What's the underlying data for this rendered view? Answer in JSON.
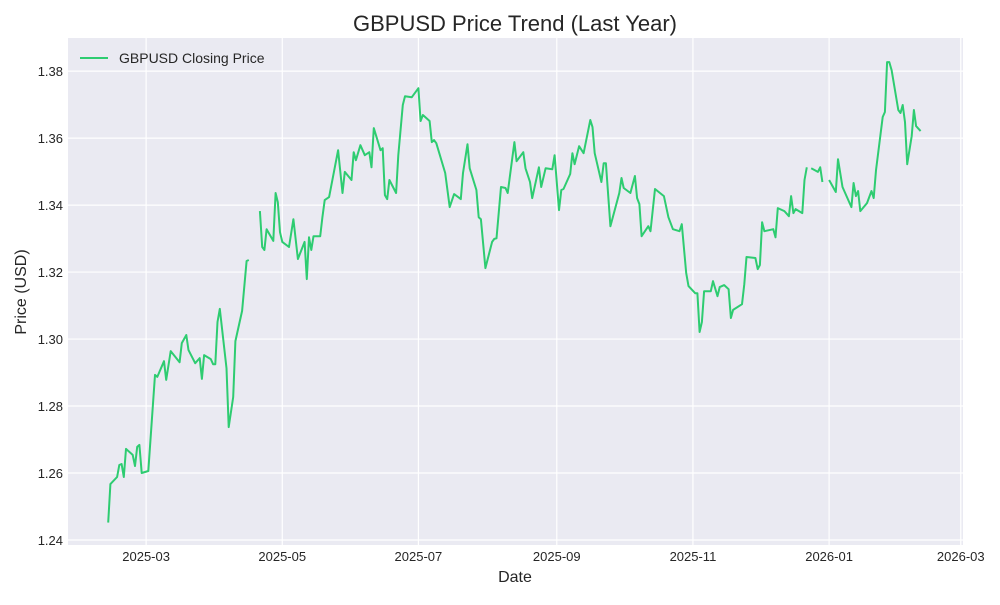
{
  "chart_data": {
    "type": "line",
    "title": "GBPUSD Price Trend (Last Year)",
    "xlabel": "Date",
    "ylabel": "Price (USD)",
    "xlim": [
      "2025-01-25",
      "2026-03-02"
    ],
    "ylim": [
      1.2385,
      1.3899
    ],
    "x_ticks": [
      "2025-03",
      "2025-05",
      "2025-07",
      "2025-09",
      "2025-11",
      "2026-01",
      "2026-03"
    ],
    "y_ticks": [
      "1.24",
      "1.26",
      "1.28",
      "1.30",
      "1.32",
      "1.34",
      "1.36",
      "1.38"
    ],
    "grid": true,
    "background": "#eaeaf2",
    "legend": {
      "placement": "top-left",
      "entries": [
        "GBPUSD Closing Price"
      ]
    },
    "series": [
      {
        "name": "GBPUSD Closing Price",
        "color": "#2ecc71",
        "points": [
          [
            "2025-02-12",
            1.2452
          ],
          [
            "2025-02-13",
            1.2567
          ],
          [
            "2025-02-16",
            1.2588
          ],
          [
            "2025-02-17",
            1.2624
          ],
          [
            "2025-02-18",
            1.2627
          ],
          [
            "2025-02-19",
            1.2588
          ],
          [
            "2025-02-20",
            1.2672
          ],
          [
            "2025-02-23",
            1.2654
          ],
          [
            "2025-02-24",
            1.2621
          ],
          [
            "2025-02-25",
            1.2678
          ],
          [
            "2025-02-26",
            1.2684
          ],
          [
            "2025-02-27",
            1.26
          ],
          [
            "2025-03-02",
            1.2606
          ],
          [
            "2025-03-05",
            1.2893
          ],
          [
            "2025-03-06",
            1.2887
          ],
          [
            "2025-03-09",
            1.2934
          ],
          [
            "2025-03-10",
            1.2878
          ],
          [
            "2025-03-12",
            1.2964
          ],
          [
            "2025-03-16",
            1.2931
          ],
          [
            "2025-03-17",
            1.2988
          ],
          [
            "2025-03-19",
            1.3012
          ],
          [
            "2025-03-20",
            1.2967
          ],
          [
            "2025-03-23",
            1.2928
          ],
          [
            "2025-03-25",
            1.2943
          ],
          [
            "2025-03-26",
            1.2881
          ],
          [
            "2025-03-27",
            1.2952
          ],
          [
            "2025-03-30",
            1.294
          ],
          [
            "2025-03-31",
            1.2925
          ],
          [
            "2025-04-01",
            1.2925
          ],
          [
            "2025-04-02",
            1.3051
          ],
          [
            "2025-04-03",
            1.309
          ],
          [
            "2025-04-06",
            1.2913
          ],
          [
            "2025-04-07",
            1.2737
          ],
          [
            "2025-04-09",
            1.2827
          ],
          [
            "2025-04-10",
            1.2994
          ],
          [
            "2025-04-13",
            1.3084
          ],
          [
            "2025-04-15",
            1.3233
          ],
          [
            "2025-04-16",
            1.3236
          ],
          [
            "2025-04-18",
            null
          ],
          [
            "2025-04-21",
            1.3382
          ],
          [
            "2025-04-22",
            1.3275
          ],
          [
            "2025-04-23",
            1.3266
          ],
          [
            "2025-04-24",
            1.3328
          ],
          [
            "2025-04-27",
            1.3293
          ],
          [
            "2025-04-28",
            1.3436
          ],
          [
            "2025-04-29",
            1.3409
          ],
          [
            "2025-04-30",
            1.3319
          ],
          [
            "2025-05-01",
            1.329
          ],
          [
            "2025-05-04",
            1.3275
          ],
          [
            "2025-05-06",
            1.3358
          ],
          [
            "2025-05-08",
            1.3239
          ],
          [
            "2025-05-11",
            1.329
          ],
          [
            "2025-05-12",
            1.3179
          ],
          [
            "2025-05-13",
            1.3304
          ],
          [
            "2025-05-14",
            1.3266
          ],
          [
            "2025-05-15",
            1.3307
          ],
          [
            "2025-05-18",
            1.3307
          ],
          [
            "2025-05-19",
            1.3364
          ],
          [
            "2025-05-20",
            1.3415
          ],
          [
            "2025-05-22",
            1.3424
          ],
          [
            "2025-05-26",
            1.3564
          ],
          [
            "2025-05-28",
            1.3436
          ],
          [
            "2025-05-29",
            1.3499
          ],
          [
            "2025-06-01",
            1.3475
          ],
          [
            "2025-06-02",
            1.3558
          ],
          [
            "2025-06-03",
            1.3534
          ],
          [
            "2025-06-05",
            1.3579
          ],
          [
            "2025-06-07",
            1.3549
          ],
          [
            "2025-06-09",
            1.3558
          ],
          [
            "2025-06-10",
            1.3513
          ],
          [
            "2025-06-11",
            1.363
          ],
          [
            "2025-06-14",
            1.3564
          ],
          [
            "2025-06-15",
            1.357
          ],
          [
            "2025-06-16",
            1.343
          ],
          [
            "2025-06-17",
            1.3418
          ],
          [
            "2025-06-18",
            1.3475
          ],
          [
            "2025-06-21",
            1.3436
          ],
          [
            "2025-06-22",
            1.3549
          ],
          [
            "2025-06-24",
            1.3699
          ],
          [
            "2025-06-25",
            1.3725
          ],
          [
            "2025-06-28",
            1.3722
          ],
          [
            "2025-07-01",
            1.3749
          ],
          [
            "2025-07-02",
            1.3651
          ],
          [
            "2025-07-03",
            1.3669
          ],
          [
            "2025-07-06",
            1.3651
          ],
          [
            "2025-07-07",
            1.3588
          ],
          [
            "2025-07-08",
            1.3594
          ],
          [
            "2025-07-09",
            1.3585
          ],
          [
            "2025-07-13",
            1.3496
          ],
          [
            "2025-07-15",
            1.3394
          ],
          [
            "2025-07-17",
            1.3433
          ],
          [
            "2025-07-20",
            1.3418
          ],
          [
            "2025-07-21",
            1.3496
          ],
          [
            "2025-07-23",
            1.3582
          ],
          [
            "2025-07-24",
            1.351
          ],
          [
            "2025-07-27",
            1.3445
          ],
          [
            "2025-07-28",
            1.3364
          ],
          [
            "2025-07-29",
            1.3358
          ],
          [
            "2025-07-31",
            1.3212
          ],
          [
            "2025-08-03",
            1.329
          ],
          [
            "2025-08-04",
            1.3299
          ],
          [
            "2025-08-05",
            1.3301
          ],
          [
            "2025-08-07",
            1.3454
          ],
          [
            "2025-08-09",
            1.3451
          ],
          [
            "2025-08-10",
            1.3436
          ],
          [
            "2025-08-13",
            1.3588
          ],
          [
            "2025-08-14",
            1.3531
          ],
          [
            "2025-08-17",
            1.3558
          ],
          [
            "2025-08-18",
            1.351
          ],
          [
            "2025-08-20",
            1.3469
          ],
          [
            "2025-08-21",
            1.3421
          ],
          [
            "2025-08-24",
            1.3513
          ],
          [
            "2025-08-25",
            1.3454
          ],
          [
            "2025-08-27",
            1.351
          ],
          [
            "2025-08-30",
            1.3507
          ],
          [
            "2025-08-31",
            1.3549
          ],
          [
            "2025-09-02",
            1.3385
          ],
          [
            "2025-09-03",
            1.3445
          ],
          [
            "2025-09-04",
            1.3448
          ],
          [
            "2025-09-07",
            1.3493
          ],
          [
            "2025-09-08",
            1.3555
          ],
          [
            "2025-09-09",
            1.3522
          ],
          [
            "2025-09-11",
            1.3576
          ],
          [
            "2025-09-13",
            1.3555
          ],
          [
            "2025-09-16",
            1.3654
          ],
          [
            "2025-09-17",
            1.3633
          ],
          [
            "2025-09-18",
            1.3555
          ],
          [
            "2025-09-21",
            1.3469
          ],
          [
            "2025-09-22",
            1.3525
          ],
          [
            "2025-09-23",
            1.3525
          ],
          [
            "2025-09-25",
            1.3337
          ],
          [
            "2025-09-29",
            1.3436
          ],
          [
            "2025-09-30",
            1.3481
          ],
          [
            "2025-10-01",
            1.3451
          ],
          [
            "2025-10-04",
            1.3436
          ],
          [
            "2025-10-06",
            1.3487
          ],
          [
            "2025-10-07",
            1.3421
          ],
          [
            "2025-10-08",
            1.3403
          ],
          [
            "2025-10-09",
            1.3307
          ],
          [
            "2025-10-12",
            1.3337
          ],
          [
            "2025-10-13",
            1.3322
          ],
          [
            "2025-10-15",
            1.3448
          ],
          [
            "2025-10-19",
            1.3427
          ],
          [
            "2025-10-21",
            1.3364
          ],
          [
            "2025-10-23",
            1.3328
          ],
          [
            "2025-10-26",
            1.3322
          ],
          [
            "2025-10-27",
            1.3343
          ],
          [
            "2025-10-29",
            1.3197
          ],
          [
            "2025-10-30",
            1.3158
          ],
          [
            "2025-11-02",
            1.3137
          ],
          [
            "2025-11-03",
            1.3137
          ],
          [
            "2025-11-04",
            1.3021
          ],
          [
            "2025-11-05",
            1.3051
          ],
          [
            "2025-11-06",
            1.3143
          ],
          [
            "2025-11-09",
            1.3143
          ],
          [
            "2025-11-10",
            1.3173
          ],
          [
            "2025-11-12",
            1.3128
          ],
          [
            "2025-11-13",
            1.3155
          ],
          [
            "2025-11-15",
            1.3161
          ],
          [
            "2025-11-17",
            1.3149
          ],
          [
            "2025-11-18",
            1.3063
          ],
          [
            "2025-11-19",
            1.3087
          ],
          [
            "2025-11-23",
            1.3104
          ],
          [
            "2025-11-24",
            1.3164
          ],
          [
            "2025-11-25",
            1.3245
          ],
          [
            "2025-11-29",
            1.3242
          ],
          [
            "2025-11-30",
            1.3209
          ],
          [
            "2025-12-01",
            1.3221
          ],
          [
            "2025-12-02",
            1.3349
          ],
          [
            "2025-12-03",
            1.3322
          ],
          [
            "2025-12-07",
            1.3328
          ],
          [
            "2025-12-08",
            1.3304
          ],
          [
            "2025-12-09",
            1.3391
          ],
          [
            "2025-12-12",
            1.3382
          ],
          [
            "2025-12-14",
            1.3367
          ],
          [
            "2025-12-15",
            1.3427
          ],
          [
            "2025-12-16",
            1.3376
          ],
          [
            "2025-12-17",
            1.3388
          ],
          [
            "2025-12-20",
            1.3376
          ],
          [
            "2025-12-21",
            1.3475
          ],
          [
            "2025-12-22",
            1.3513
          ],
          [
            "2025-12-23",
            null
          ],
          [
            "2025-12-24",
            1.351
          ],
          [
            "2025-12-27",
            1.3499
          ],
          [
            "2025-12-28",
            1.3513
          ],
          [
            "2025-12-29",
            1.3469
          ],
          [
            "2025-12-30",
            null
          ],
          [
            "2026-01-01",
            1.3475
          ],
          [
            "2026-01-04",
            1.3439
          ],
          [
            "2026-01-05",
            1.3537
          ],
          [
            "2026-01-07",
            1.3454
          ],
          [
            "2026-01-11",
            1.3394
          ],
          [
            "2026-01-12",
            1.3466
          ],
          [
            "2026-01-13",
            1.3427
          ],
          [
            "2026-01-14",
            1.3442
          ],
          [
            "2026-01-15",
            1.3382
          ],
          [
            "2026-01-18",
            1.3406
          ],
          [
            "2026-01-20",
            1.3442
          ],
          [
            "2026-01-21",
            1.3421
          ],
          [
            "2026-01-22",
            1.3504
          ],
          [
            "2026-01-25",
            1.3663
          ],
          [
            "2026-01-26",
            1.3678
          ],
          [
            "2026-01-27",
            1.3827
          ],
          [
            "2026-01-28",
            1.3827
          ],
          [
            "2026-01-29",
            1.3803
          ],
          [
            "2026-02-01",
            1.3684
          ],
          [
            "2026-02-02",
            1.3675
          ],
          [
            "2026-02-03",
            1.3699
          ],
          [
            "2026-02-04",
            1.3648
          ],
          [
            "2026-02-05",
            1.3522
          ],
          [
            "2026-02-07",
            1.3606
          ],
          [
            "2026-02-08",
            1.3684
          ],
          [
            "2026-02-09",
            1.3636
          ],
          [
            "2026-02-11",
            1.3621
          ]
        ]
      }
    ]
  }
}
